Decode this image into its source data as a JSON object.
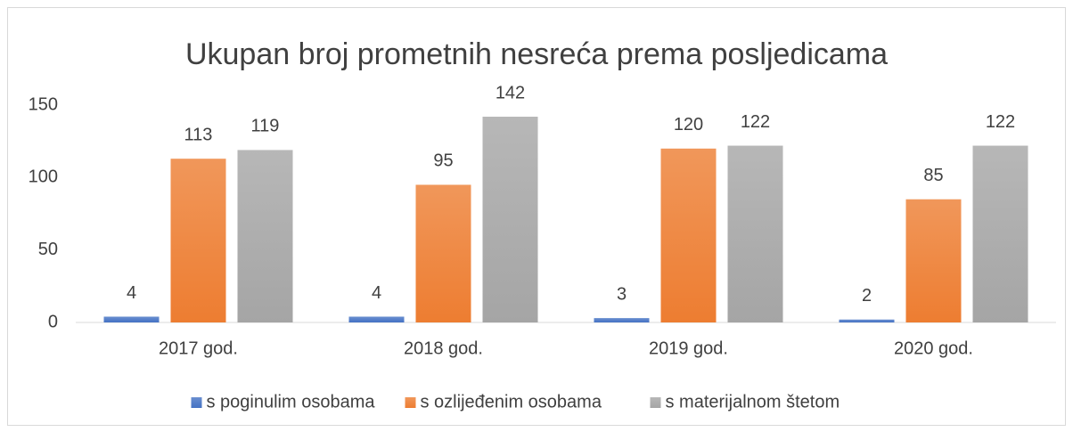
{
  "chart_data": {
    "type": "bar",
    "title": "Ukupan broj prometnih nesreća prema posljedicama",
    "categories": [
      "2017 god.",
      "2018 god.",
      "2019 god.",
      "2020 god."
    ],
    "series": [
      {
        "name": "s poginulim osobama",
        "color": "#4472c4",
        "values": [
          4,
          4,
          3,
          2
        ]
      },
      {
        "name": "s ozlijeđenim osobama",
        "color": "#ed7d31",
        "values": [
          113,
          95,
          120,
          85
        ]
      },
      {
        "name": "s materijalnom štetom",
        "color": "#a5a5a5",
        "values": [
          119,
          142,
          122,
          122
        ]
      }
    ],
    "ylim": [
      0,
      150
    ],
    "yticks": [
      0,
      50,
      100,
      150
    ],
    "grid": false,
    "legend": "bottom"
  }
}
